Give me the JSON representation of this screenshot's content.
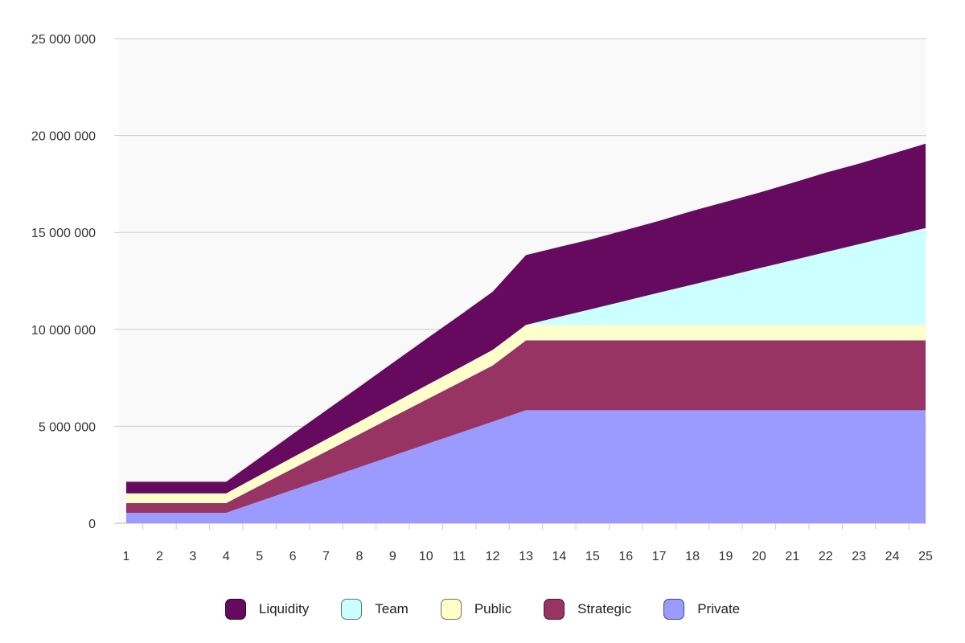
{
  "chart_data": {
    "type": "area",
    "stacked": true,
    "x": [
      1,
      2,
      3,
      4,
      5,
      6,
      7,
      8,
      9,
      10,
      11,
      12,
      13,
      14,
      15,
      16,
      17,
      18,
      19,
      20,
      21,
      22,
      23,
      24,
      25
    ],
    "ylim": [
      0,
      25000000
    ],
    "yticks": [
      0,
      5000000,
      10000000,
      15000000,
      20000000,
      25000000
    ],
    "ytick_labels": [
      "0",
      "5 000 000",
      "10 000 000",
      "15 000 000",
      "20 000 000",
      "25 000 000"
    ],
    "grid": true,
    "legend_position": "bottom",
    "series": [
      {
        "name": "Private",
        "color": "#9b9bff",
        "values": [
          540000,
          540000,
          540000,
          540000,
          1130000,
          1720000,
          2300000,
          2890000,
          3480000,
          4070000,
          4650000,
          5240000,
          5830000,
          5830000,
          5830000,
          5830000,
          5830000,
          5830000,
          5830000,
          5830000,
          5830000,
          5830000,
          5830000,
          5830000,
          5830000
        ]
      },
      {
        "name": "Strategic",
        "color": "#973464",
        "values": [
          500000,
          500000,
          500000,
          500000,
          800000,
          1100000,
          1400000,
          1700000,
          2000000,
          2300000,
          2600000,
          2900000,
          3600000,
          3600000,
          3600000,
          3600000,
          3600000,
          3600000,
          3600000,
          3600000,
          3600000,
          3600000,
          3600000,
          3600000,
          3600000
        ]
      },
      {
        "name": "Public",
        "color": "#ffffcc",
        "values": [
          500000,
          500000,
          500000,
          500000,
          540000,
          580000,
          620000,
          650000,
          690000,
          730000,
          760000,
          800000,
          800000,
          800000,
          800000,
          800000,
          800000,
          800000,
          800000,
          800000,
          800000,
          800000,
          800000,
          800000,
          800000
        ]
      },
      {
        "name": "Team",
        "color": "#ccffff",
        "values": [
          0,
          0,
          0,
          0,
          0,
          0,
          0,
          0,
          0,
          0,
          0,
          0,
          0,
          420000,
          830000,
          1250000,
          1670000,
          2080000,
          2500000,
          2920000,
          3330000,
          3750000,
          4170000,
          4580000,
          5000000
        ]
      },
      {
        "name": "Liquidity",
        "color": "#660a5f",
        "values": [
          600000,
          600000,
          600000,
          600000,
          900000,
          1200000,
          1500000,
          1800000,
          2100000,
          2400000,
          2700000,
          3000000,
          3600000,
          3600000,
          3600000,
          3650000,
          3700000,
          3800000,
          3850000,
          3900000,
          4000000,
          4100000,
          4150000,
          4250000,
          4350000
        ]
      }
    ],
    "legend": [
      "Liquidity",
      "Team",
      "Public",
      "Strategic",
      "Private"
    ]
  }
}
